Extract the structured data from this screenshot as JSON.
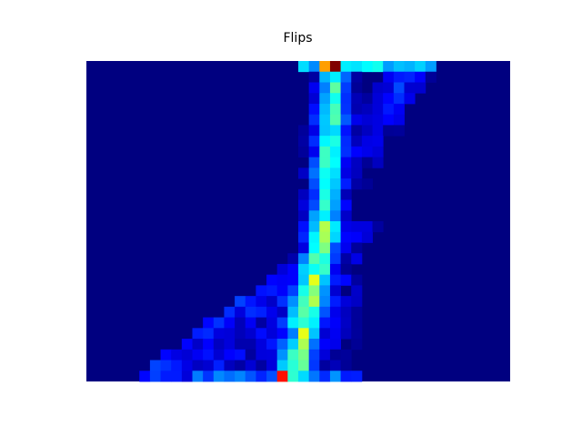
{
  "chart_data": {
    "type": "heatmap",
    "title": "Flips",
    "xlabel": "",
    "ylabel": "",
    "axes_visible": false,
    "grid": false,
    "colormap": "jet",
    "value_range": [
      0,
      1
    ],
    "n_cols": 40,
    "n_rows": 30,
    "hot_spots": [
      {
        "row": 0,
        "col": 23,
        "value": 1.0
      },
      {
        "row": 0,
        "col": 22,
        "value": 0.72
      },
      {
        "row": 29,
        "col": 18,
        "value": 0.86
      }
    ]
  }
}
